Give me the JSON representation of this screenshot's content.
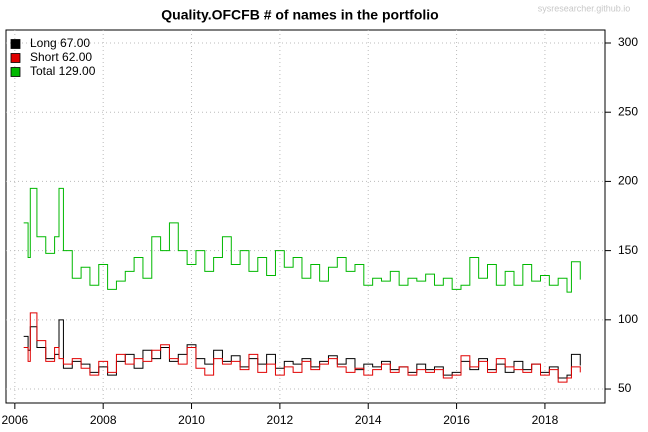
{
  "chart_data": {
    "type": "step",
    "title": "Quality.OFCFB # of names in the portfolio",
    "watermark": "sysresearcher.github.io",
    "x": [
      2006.2,
      2006.3,
      2006.35,
      2006.5,
      2006.7,
      2006.9,
      2007.0,
      2007.1,
      2007.3,
      2007.5,
      2007.7,
      2007.9,
      2008.1,
      2008.3,
      2008.5,
      2008.7,
      2008.9,
      2009.1,
      2009.3,
      2009.5,
      2009.7,
      2009.9,
      2010.1,
      2010.3,
      2010.5,
      2010.7,
      2010.9,
      2011.1,
      2011.3,
      2011.5,
      2011.7,
      2011.9,
      2012.1,
      2012.3,
      2012.5,
      2012.7,
      2012.9,
      2013.1,
      2013.3,
      2013.5,
      2013.7,
      2013.9,
      2014.1,
      2014.3,
      2014.5,
      2014.7,
      2014.9,
      2015.1,
      2015.3,
      2015.5,
      2015.7,
      2015.9,
      2016.1,
      2016.3,
      2016.5,
      2016.7,
      2016.9,
      2017.1,
      2017.3,
      2017.5,
      2017.7,
      2017.9,
      2018.1,
      2018.3,
      2018.5,
      2018.6,
      2018.8
    ],
    "series": [
      {
        "name": "Long",
        "legend_label": "Long  67.00",
        "color": "#000000",
        "values": [
          88,
          78,
          95,
          80,
          72,
          75,
          100,
          65,
          70,
          68,
          62,
          66,
          60,
          70,
          75,
          65,
          78,
          72,
          80,
          70,
          75,
          82,
          72,
          68,
          78,
          70,
          74,
          66,
          72,
          68,
          75,
          65,
          70,
          68,
          72,
          66,
          70,
          74,
          68,
          72,
          64,
          68,
          66,
          70,
          64,
          66,
          62,
          68,
          64,
          66,
          60,
          62,
          70,
          64,
          72,
          64,
          68,
          62,
          70,
          64,
          68,
          62,
          66,
          58,
          60,
          75,
          67
        ]
      },
      {
        "name": "Short",
        "legend_label": "Short  62.00",
        "color": "#e00000",
        "values": [
          80,
          70,
          105,
          85,
          70,
          80,
          72,
          68,
          72,
          65,
          60,
          70,
          62,
          75,
          68,
          72,
          70,
          78,
          82,
          72,
          68,
          80,
          65,
          60,
          72,
          68,
          70,
          64,
          75,
          62,
          68,
          60,
          66,
          62,
          70,
          64,
          68,
          72,
          66,
          62,
          65,
          60,
          64,
          68,
          62,
          66,
          60,
          64,
          62,
          64,
          58,
          60,
          74,
          66,
          70,
          62,
          72,
          66,
          64,
          62,
          68,
          60,
          64,
          55,
          58,
          66,
          62
        ]
      },
      {
        "name": "Total",
        "legend_label": "Total 129.00",
        "color": "#00b800",
        "values": [
          170,
          145,
          195,
          160,
          148,
          160,
          195,
          150,
          130,
          138,
          125,
          140,
          122,
          128,
          135,
          145,
          130,
          160,
          150,
          170,
          150,
          140,
          150,
          135,
          145,
          160,
          140,
          150,
          135,
          145,
          132,
          150,
          138,
          145,
          130,
          140,
          128,
          138,
          145,
          135,
          140,
          125,
          130,
          128,
          135,
          125,
          130,
          128,
          133,
          125,
          130,
          122,
          125,
          145,
          130,
          140,
          125,
          135,
          125,
          140,
          128,
          132,
          125,
          130,
          120,
          142,
          129
        ]
      }
    ],
    "xlim": [
      2005.8,
      2019.36
    ],
    "xticks": [
      2006,
      2008,
      2010,
      2012,
      2014,
      2016,
      2018
    ],
    "ylim": [
      39.9,
      309.4
    ],
    "yticks": [
      50,
      100,
      150,
      200,
      250,
      300
    ],
    "grid": true,
    "legend": "top-left"
  }
}
